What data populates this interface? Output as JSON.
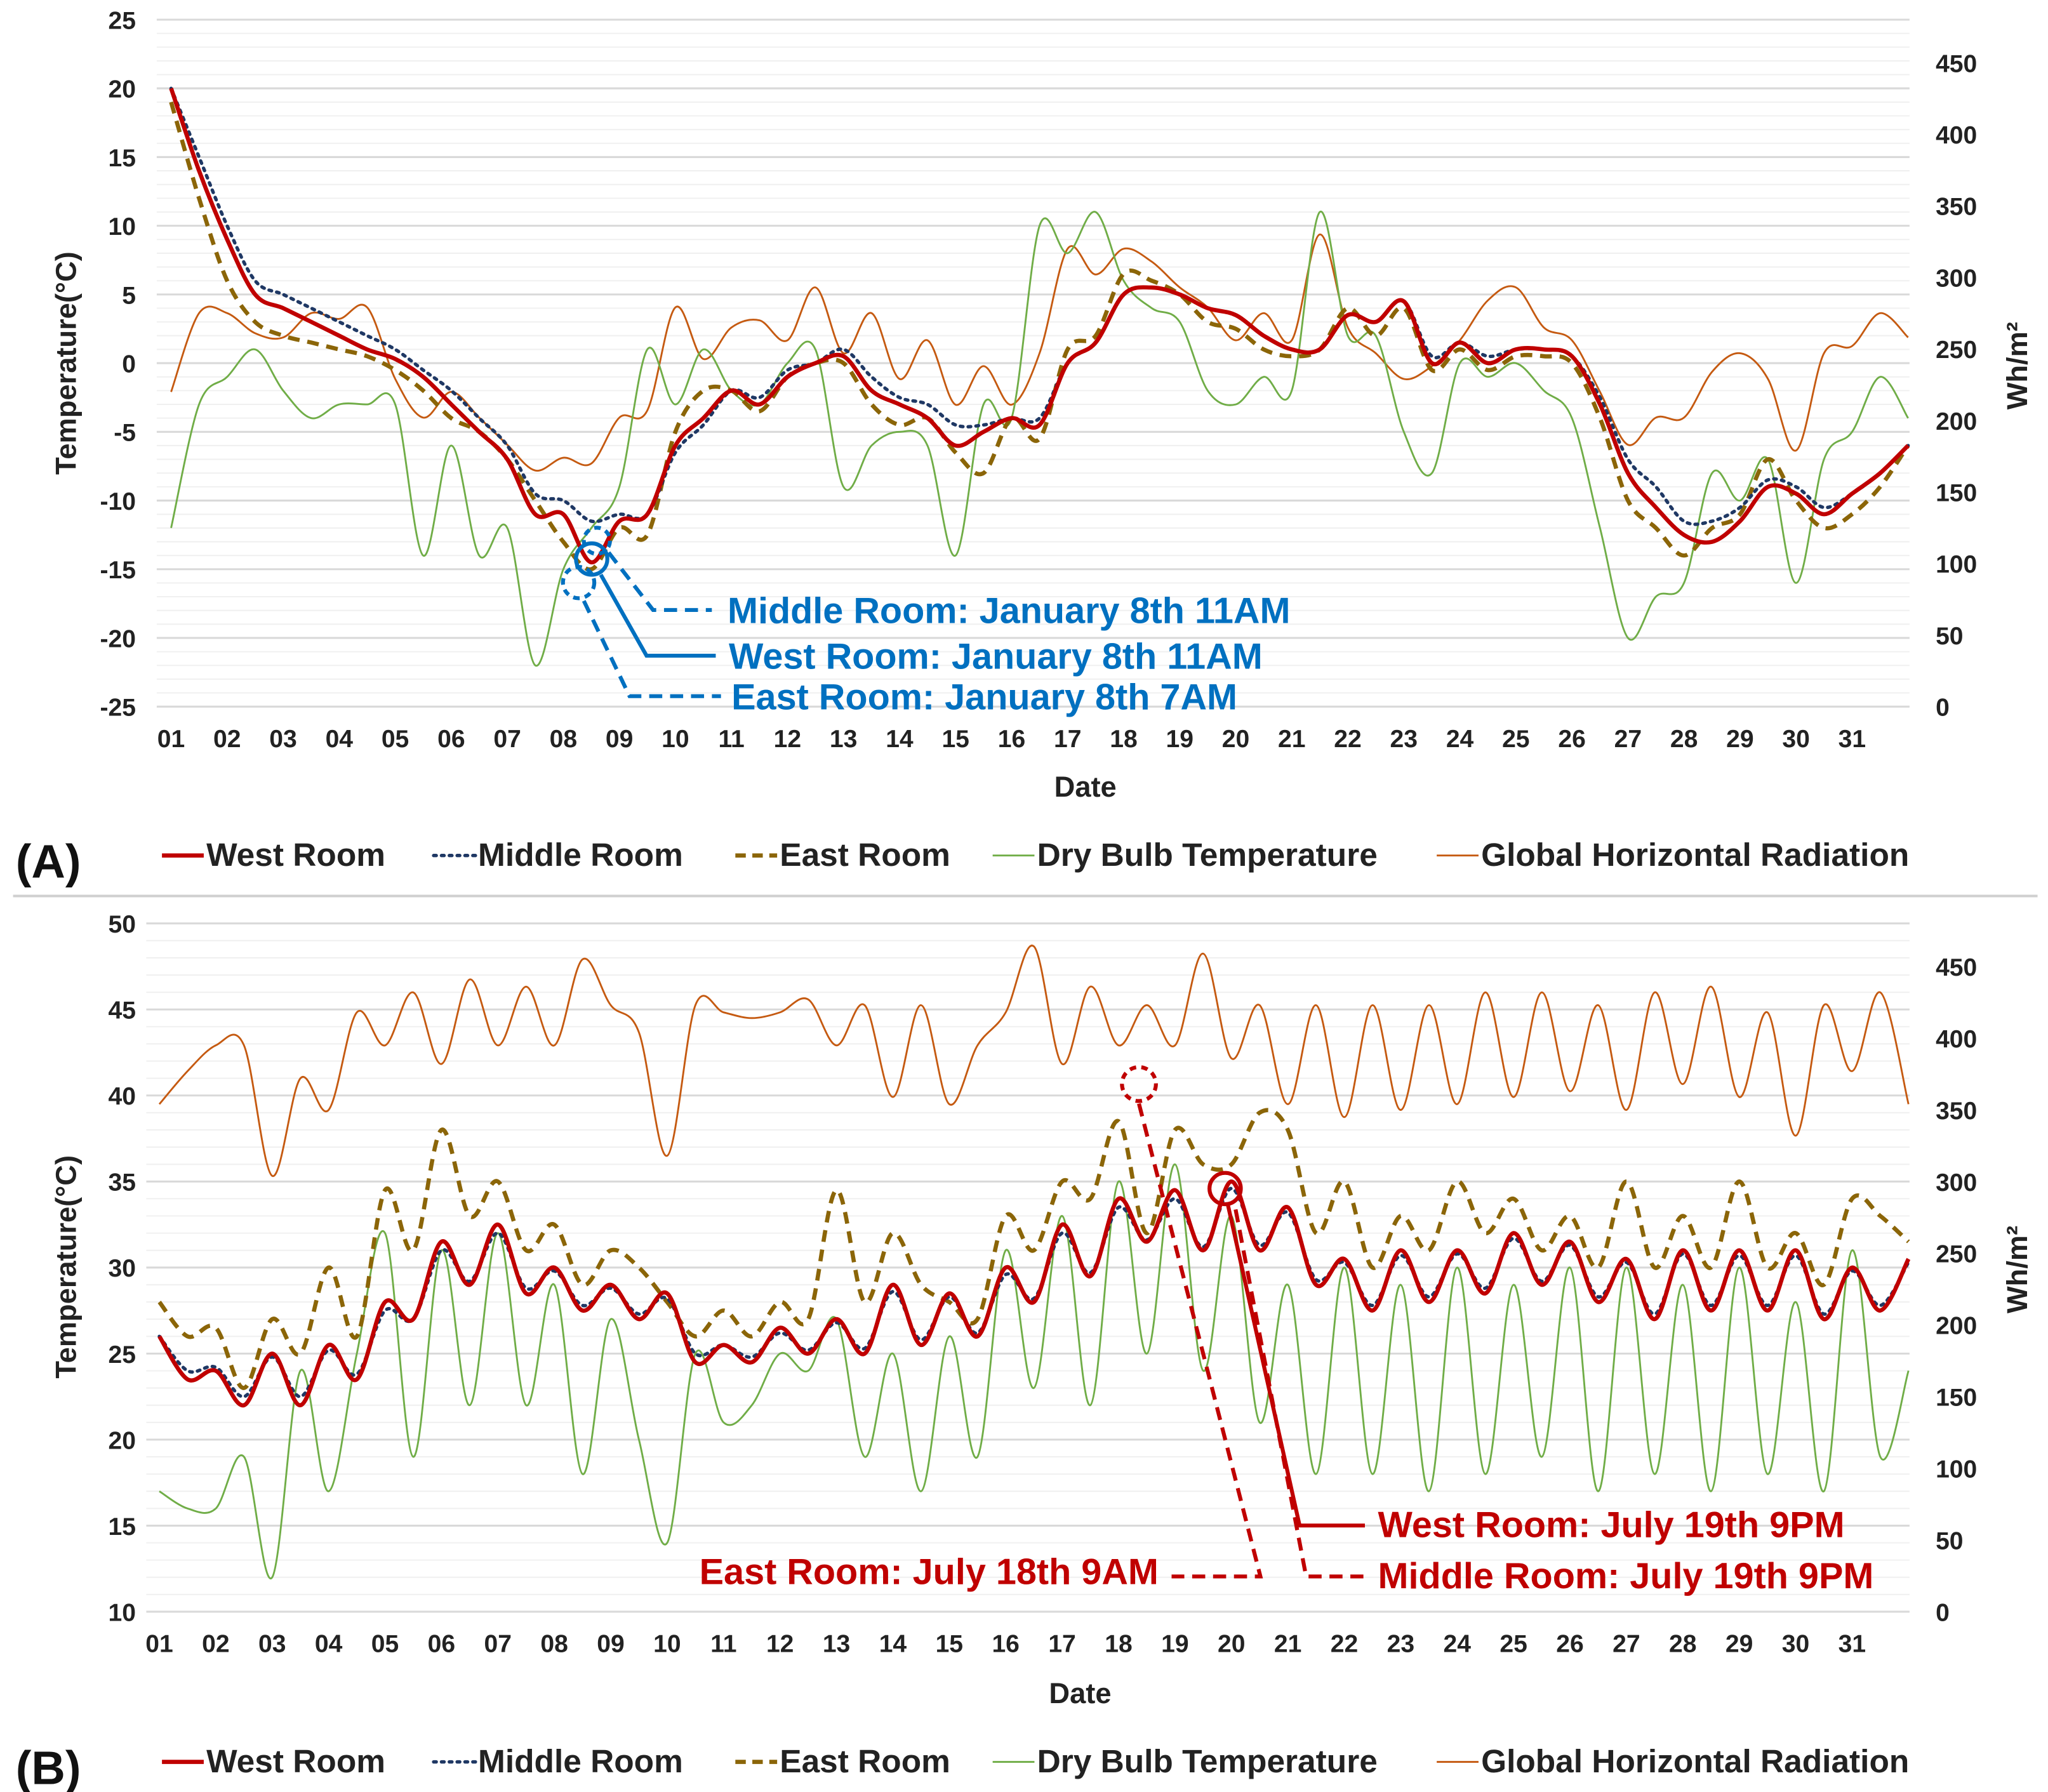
{
  "chart_data": [
    {
      "panel_label": "(A)",
      "type": "line",
      "x_start": 1,
      "x_step": 0.5,
      "xlabel": "Date",
      "ylabel": "Temperature(°C)",
      "ylabel_right": "Wh/m²",
      "ylim": [
        -25,
        25
      ],
      "ylim_right": [
        0,
        450
      ],
      "x_ticks": [
        "01",
        "02",
        "03",
        "04",
        "05",
        "06",
        "07",
        "08",
        "09",
        "10",
        "11",
        "12",
        "13",
        "14",
        "15",
        "16",
        "17",
        "18",
        "19",
        "20",
        "21",
        "22",
        "23",
        "24",
        "25",
        "26",
        "27",
        "28",
        "29",
        "30",
        "31"
      ],
      "y_ticks": [
        "25",
        "20",
        "15",
        "10",
        "5",
        "0",
        "-5",
        "-10",
        "-15",
        "-20",
        "-25"
      ],
      "y_ticks_right": [
        "450",
        "400",
        "350",
        "300",
        "250",
        "200",
        "150",
        "100",
        "50",
        "0"
      ],
      "legend": [
        "West Room",
        "Middle Room",
        "East Room",
        "Dry  Bulb Temperature",
        "Global Horizontal Radiation"
      ],
      "series": [
        {
          "name": "West Room",
          "axis": "left",
          "color": "#c00000",
          "values": [
            20,
            14,
            9,
            5,
            4,
            3,
            2,
            1,
            0.3,
            -1,
            -3,
            -5,
            -7,
            -11,
            -11,
            -14.5,
            -11.5,
            -11,
            -6,
            -4,
            -2,
            -3,
            -1,
            0,
            0.5,
            -2,
            -3,
            -4,
            -6,
            -5,
            -4,
            -4.5,
            0,
            1.5,
            5,
            5.5,
            5,
            4,
            3.5,
            2,
            1,
            1,
            3.5,
            3,
            4.5,
            0,
            1.5,
            0,
            1,
            1,
            0.5,
            -3,
            -8,
            -10.5,
            -12.5,
            -13,
            -11.5,
            -9,
            -9.5,
            -11,
            -9.5,
            -8,
            -6
          ]
        },
        {
          "name": "Middle Room",
          "axis": "left",
          "color": "#1f3864",
          "values": [
            20,
            15,
            10,
            6,
            5,
            4,
            3,
            2,
            1,
            -0.5,
            -2,
            -4,
            -6,
            -9.5,
            -10,
            -11.5,
            -11,
            -11,
            -6.5,
            -4.5,
            -2,
            -2.5,
            -0.5,
            0,
            1,
            -1,
            -2.5,
            -3,
            -4.5,
            -4.5,
            -4,
            -4,
            0,
            1.5,
            5,
            5.5,
            5,
            4,
            3.5,
            2,
            1,
            1,
            3.5,
            3,
            4.5,
            0.5,
            1.5,
            0.5,
            1,
            1,
            0.5,
            -2.5,
            -7,
            -9,
            -11.5,
            -11.5,
            -10.5,
            -8.5,
            -9,
            -10.5,
            -9.5,
            -8,
            -6
          ]
        },
        {
          "name": "East Room",
          "axis": "left",
          "color": "#8b6508",
          "values": [
            19,
            12,
            6,
            3,
            2,
            1.5,
            1,
            0.5,
            -0.5,
            -2,
            -4,
            -5,
            -7,
            -10,
            -13,
            -15,
            -12,
            -12.5,
            -5,
            -2,
            -2,
            -3.5,
            -1,
            0,
            0,
            -3,
            -4.5,
            -4,
            -6.5,
            -8,
            -4,
            -5.5,
            1,
            2,
            6.5,
            6,
            5,
            3,
            2.5,
            1,
            0.5,
            1,
            4,
            2,
            4,
            -0.5,
            1,
            -0.5,
            0.5,
            0.5,
            0,
            -4,
            -10,
            -12,
            -14,
            -12,
            -11,
            -7,
            -10,
            -12,
            -11,
            -9,
            -6
          ]
        },
        {
          "name": "Dry  Bulb Temperature",
          "axis": "left",
          "color": "#70ad47",
          "values": [
            -12,
            -3,
            -1,
            1,
            -2,
            -4,
            -3,
            -3,
            -3,
            -14,
            -6,
            -14,
            -12,
            -22,
            -15,
            -12,
            -9,
            1,
            -3,
            1,
            -2,
            -3,
            0,
            1,
            -9,
            -6,
            -5,
            -6,
            -14,
            -3,
            -4,
            10,
            8,
            11,
            6,
            4,
            3,
            -2,
            -3,
            -1,
            -2,
            11,
            2,
            2,
            -5,
            -8,
            0,
            -1,
            0,
            -2,
            -4,
            -12,
            -20,
            -17,
            -16,
            -8,
            -10,
            -7,
            -16,
            -7,
            -5,
            -1,
            -4
          ]
        },
        {
          "name": "Global Horizontal Radiation",
          "axis": "right",
          "color": "#c55a11",
          "values": [
            220,
            275,
            275,
            261,
            258,
            275,
            271,
            279,
            229,
            202,
            220,
            202,
            183,
            165,
            174,
            170,
            202,
            207,
            279,
            243,
            265,
            270,
            256,
            293,
            247,
            275,
            229,
            256,
            211,
            238,
            211,
            247,
            320,
            302,
            320,
            311,
            293,
            279,
            256,
            275,
            256,
            330,
            265,
            247,
            229,
            238,
            256,
            284,
            293,
            265,
            256,
            220,
            183,
            202,
            202,
            234,
            247,
            229,
            179,
            247,
            252,
            275,
            258
          ]
        }
      ],
      "annotations": [
        "Middle Room:  January 8th 11AM",
        "West Room:  January 8th 11AM",
        "East Room:  January 8th 7AM"
      ]
    },
    {
      "panel_label": "(B)",
      "type": "line",
      "x_start": 1,
      "x_step": 0.5,
      "xlabel": "Date",
      "ylabel": "Temperature(°C)",
      "ylabel_right": "Wh/m²",
      "ylim": [
        10,
        50
      ],
      "ylim_right": [
        0,
        450
      ],
      "x_ticks": [
        "01",
        "02",
        "03",
        "04",
        "05",
        "06",
        "07",
        "08",
        "09",
        "10",
        "11",
        "12",
        "13",
        "14",
        "15",
        "16",
        "17",
        "18",
        "19",
        "20",
        "21",
        "22",
        "23",
        "24",
        "25",
        "26",
        "27",
        "28",
        "29",
        "30",
        "31"
      ],
      "y_ticks": [
        "50",
        "45",
        "40",
        "35",
        "30",
        "25",
        "20",
        "15",
        "10"
      ],
      "y_ticks_right": [
        "450",
        "400",
        "350",
        "300",
        "250",
        "200",
        "150",
        "100",
        "50",
        "0"
      ],
      "legend": [
        "West Room",
        "Middle Room",
        "East Room",
        "Dry  Bulb Temperature",
        "Global Horizontal Radiation"
      ],
      "series": [
        {
          "name": "West Room",
          "axis": "left",
          "color": "#c00000",
          "values": [
            26,
            23.5,
            24,
            22,
            25,
            22,
            25.5,
            23.5,
            28,
            27,
            31.5,
            29,
            32.5,
            28.5,
            30,
            27.5,
            29,
            27,
            28.5,
            24.5,
            25.5,
            24.5,
            26.5,
            25,
            27,
            25,
            29,
            25.5,
            28.5,
            26,
            30,
            28,
            32.5,
            29.5,
            34,
            31.5,
            34.5,
            31,
            35,
            31,
            33.5,
            29,
            30.5,
            27.5,
            31,
            28,
            31,
            28.5,
            32,
            29,
            31.5,
            28,
            30.5,
            27,
            31,
            27.5,
            31,
            27.5,
            31,
            27,
            30,
            27.5,
            30.5
          ]
        },
        {
          "name": "Middle Room",
          "axis": "left",
          "color": "#1f3864",
          "values": [
            26,
            24,
            24.2,
            22.5,
            24.8,
            22.5,
            25.2,
            23.8,
            27.5,
            27,
            31,
            29.2,
            32,
            28.8,
            29.8,
            27.8,
            28.8,
            27.3,
            28.2,
            25,
            25.5,
            24.8,
            26.2,
            25.2,
            26.8,
            25.3,
            28.6,
            25.8,
            28.3,
            26.2,
            29.6,
            28.2,
            32,
            29.7,
            33.5,
            31.6,
            34,
            31.2,
            34.6,
            31.3,
            33.2,
            29.3,
            30.3,
            27.8,
            30.7,
            28.3,
            30.8,
            28.8,
            31.7,
            29.2,
            31.3,
            28.3,
            30.3,
            27.3,
            30.8,
            27.8,
            30.7,
            27.8,
            30.7,
            27.3,
            29.8,
            27.8,
            30.3
          ]
        },
        {
          "name": "East Room",
          "axis": "left",
          "color": "#8b6508",
          "values": [
            28,
            26,
            26.5,
            23,
            27,
            25,
            30,
            26,
            34.5,
            31,
            38,
            33,
            35,
            31,
            32.5,
            29,
            31,
            30,
            28,
            26,
            27.5,
            26,
            28,
            27,
            34.5,
            28,
            32,
            29,
            28,
            27,
            33,
            31,
            35,
            34,
            38.5,
            32,
            38,
            36,
            36,
            39,
            38,
            32,
            35,
            30,
            33,
            31,
            35,
            32,
            34,
            31,
            33,
            30,
            35,
            30,
            33,
            30,
            35,
            30,
            32,
            29,
            34,
            33,
            31.5
          ]
        },
        {
          "name": "Dry  Bulb Temperature",
          "axis": "left",
          "color": "#70ad47",
          "values": [
            17,
            16,
            16,
            19,
            12,
            24,
            17,
            25,
            32,
            19,
            31,
            22,
            32,
            22,
            29,
            18,
            27,
            20,
            14,
            25,
            21,
            22,
            25,
            24,
            27,
            19,
            25,
            17,
            26,
            19,
            31,
            23,
            33,
            22,
            35,
            25,
            36,
            24,
            33,
            21,
            29,
            18,
            30,
            18,
            29,
            17,
            30,
            18,
            29,
            19,
            30,
            17,
            30,
            18,
            29,
            17,
            30,
            18,
            28,
            17,
            31,
            19,
            24
          ]
        },
        {
          "name": "Global Horizontal Radiation",
          "axis": "right",
          "color": "#c55a11",
          "values": [
            354,
            377,
            395,
            395,
            304,
            372,
            350,
            418,
            395,
            432,
            382,
            441,
            395,
            436,
            395,
            455,
            423,
            404,
            318,
            423,
            418,
            414,
            418,
            427,
            395,
            423,
            359,
            423,
            354,
            395,
            418,
            464,
            382,
            436,
            395,
            423,
            395,
            459,
            386,
            423,
            354,
            423,
            345,
            423,
            350,
            423,
            354,
            432,
            359,
            432,
            363,
            423,
            350,
            432,
            368,
            436,
            359,
            418,
            332,
            423,
            377,
            432,
            354
          ]
        }
      ],
      "annotations": [
        "West Room: July 19th 9PM",
        "Middle Room: July 19th 9PM",
        "East Room:  July 18th 9AM"
      ]
    }
  ]
}
